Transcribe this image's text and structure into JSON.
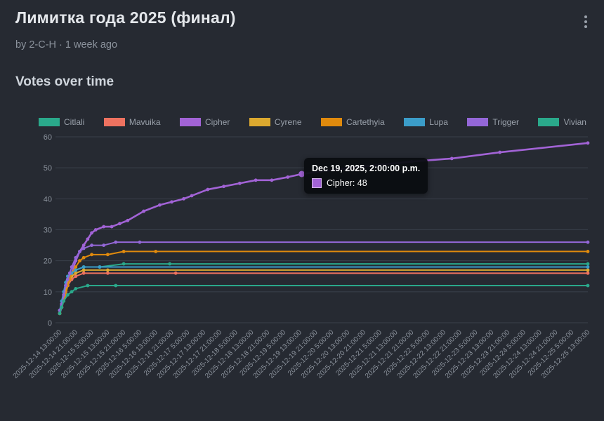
{
  "page": {
    "title": "Лимитка года 2025 (финал)",
    "byline": "by 2-C-H · 1 week ago",
    "section_title": "Votes over time",
    "menu_icon": "kebab-menu-icon"
  },
  "colors": {
    "background": "#262a32",
    "title_text": "#e4e7eb",
    "muted_text": "#8b929c",
    "section_text": "#cfd5dc",
    "legend_text": "#99a0aa",
    "axis_text": "#8b929c",
    "grid": "#3a404b",
    "tooltip_bg": "#0c0f13"
  },
  "tooltip": {
    "title": "Dec 19, 2025, 2:00:00 p.m.",
    "series": "Cipher",
    "label": "Cipher: 48",
    "hour": 121,
    "value": 48
  },
  "chart_data": {
    "type": "line",
    "title": "Votes over time",
    "xlabel": "",
    "ylabel": "",
    "grid": true,
    "legend_position": "top",
    "ylim": [
      0,
      60
    ],
    "y_ticks": [
      0,
      10,
      20,
      30,
      40,
      50,
      60
    ],
    "x_range_hours": [
      0,
      264
    ],
    "x_tick_step_hours": 8,
    "x_tick_labels": [
      "2025-12-14 13:00:00",
      "2025-12-14 21:00:00",
      "2025-12-15 5:00:00",
      "2025-12-15 13:00:00",
      "2025-12-15 21:00:00",
      "2025-12-16 5:00:00",
      "2025-12-16 13:00:00",
      "2025-12-16 21:00:00",
      "2025-12-17 5:00:00",
      "2025-12-17 13:00:00",
      "2025-12-17 21:00:00",
      "2025-12-18 5:00:00",
      "2025-12-18 13:00:00",
      "2025-12-18 21:00:00",
      "2025-12-19 5:00:00",
      "2025-12-19 13:00:00",
      "2025-12-19 21:00:00",
      "2025-12-20 5:00:00",
      "2025-12-20 13:00:00",
      "2025-12-20 21:00:00",
      "2025-12-21 5:00:00",
      "2025-12-21 13:00:00",
      "2025-12-21 21:00:00",
      "2025-12-22 5:00:00",
      "2025-12-22 13:00:00",
      "2025-12-22 21:00:00",
      "2025-12-23 5:00:00",
      "2025-12-23 13:00:00",
      "2025-12-23 21:00:00",
      "2025-12-24 5:00:00",
      "2025-12-24 13:00:00",
      "2025-12-24 21:00:00",
      "2025-12-25 5:00:00",
      "2025-12-25 13:00:00"
    ],
    "series": [
      {
        "name": "Citlali",
        "color": "#2aa98b",
        "points": [
          [
            0,
            4
          ],
          [
            1,
            6
          ],
          [
            2,
            9
          ],
          [
            3,
            12
          ],
          [
            4,
            14
          ],
          [
            6,
            16
          ],
          [
            8,
            17
          ],
          [
            12,
            18
          ],
          [
            20,
            18
          ],
          [
            32,
            19
          ],
          [
            55,
            19
          ],
          [
            264,
            19
          ]
        ]
      },
      {
        "name": "Mavuika",
        "color": "#ee7260",
        "points": [
          [
            0,
            3
          ],
          [
            1,
            5
          ],
          [
            2,
            8
          ],
          [
            3,
            10
          ],
          [
            4,
            12
          ],
          [
            6,
            14
          ],
          [
            8,
            15
          ],
          [
            12,
            16
          ],
          [
            24,
            16
          ],
          [
            58,
            16
          ],
          [
            264,
            16
          ]
        ]
      },
      {
        "name": "Cipher",
        "color": "#a263d6",
        "line_width": 2.6,
        "points": [
          [
            0,
            3
          ],
          [
            1,
            5
          ],
          [
            2,
            8
          ],
          [
            3,
            10
          ],
          [
            4,
            12
          ],
          [
            5,
            14
          ],
          [
            6,
            16
          ],
          [
            7,
            18
          ],
          [
            8,
            20
          ],
          [
            10,
            23
          ],
          [
            12,
            25
          ],
          [
            14,
            27
          ],
          [
            16,
            29
          ],
          [
            18,
            30
          ],
          [
            22,
            31
          ],
          [
            26,
            31
          ],
          [
            30,
            32
          ],
          [
            34,
            33
          ],
          [
            42,
            36
          ],
          [
            50,
            38
          ],
          [
            56,
            39
          ],
          [
            62,
            40
          ],
          [
            66,
            41
          ],
          [
            74,
            43
          ],
          [
            82,
            44
          ],
          [
            90,
            45
          ],
          [
            98,
            46
          ],
          [
            106,
            46
          ],
          [
            114,
            47
          ],
          [
            121,
            48
          ],
          [
            145,
            50
          ],
          [
            160,
            51
          ],
          [
            176,
            52
          ],
          [
            196,
            53
          ],
          [
            220,
            55
          ],
          [
            264,
            58
          ]
        ]
      },
      {
        "name": "Cyrene",
        "color": "#dca92f",
        "points": [
          [
            0,
            3
          ],
          [
            1,
            6
          ],
          [
            2,
            9
          ],
          [
            3,
            11
          ],
          [
            4,
            13
          ],
          [
            6,
            15
          ],
          [
            8,
            16
          ],
          [
            12,
            17
          ],
          [
            24,
            17
          ],
          [
            264,
            17
          ]
        ]
      },
      {
        "name": "Cartethyia",
        "color": "#e08a0d",
        "points": [
          [
            0,
            3
          ],
          [
            1,
            5
          ],
          [
            2,
            7
          ],
          [
            3,
            9
          ],
          [
            4,
            12
          ],
          [
            5,
            14
          ],
          [
            6,
            16
          ],
          [
            8,
            18
          ],
          [
            10,
            20
          ],
          [
            12,
            21
          ],
          [
            16,
            22
          ],
          [
            24,
            22
          ],
          [
            32,
            23
          ],
          [
            48,
            23
          ],
          [
            264,
            23
          ]
        ]
      },
      {
        "name": "Lupa",
        "color": "#3b9dc9",
        "points": [
          [
            0,
            4
          ],
          [
            1,
            7
          ],
          [
            2,
            10
          ],
          [
            3,
            13
          ],
          [
            4,
            15
          ],
          [
            6,
            16
          ],
          [
            8,
            17
          ],
          [
            12,
            18
          ],
          [
            20,
            18
          ],
          [
            264,
            18
          ]
        ]
      },
      {
        "name": "Trigger",
        "color": "#9467d8",
        "points": [
          [
            0,
            4
          ],
          [
            1,
            6
          ],
          [
            2,
            9
          ],
          [
            3,
            12
          ],
          [
            4,
            14
          ],
          [
            5,
            16
          ],
          [
            6,
            18
          ],
          [
            8,
            21
          ],
          [
            10,
            23
          ],
          [
            12,
            24
          ],
          [
            16,
            25
          ],
          [
            22,
            25
          ],
          [
            28,
            26
          ],
          [
            40,
            26
          ],
          [
            264,
            26
          ]
        ]
      },
      {
        "name": "Vivian",
        "color": "#2aa98b",
        "points": [
          [
            0,
            3
          ],
          [
            1,
            5
          ],
          [
            2,
            7
          ],
          [
            4,
            9
          ],
          [
            6,
            10
          ],
          [
            8,
            11
          ],
          [
            14,
            12
          ],
          [
            28,
            12
          ],
          [
            264,
            12
          ]
        ]
      }
    ]
  }
}
